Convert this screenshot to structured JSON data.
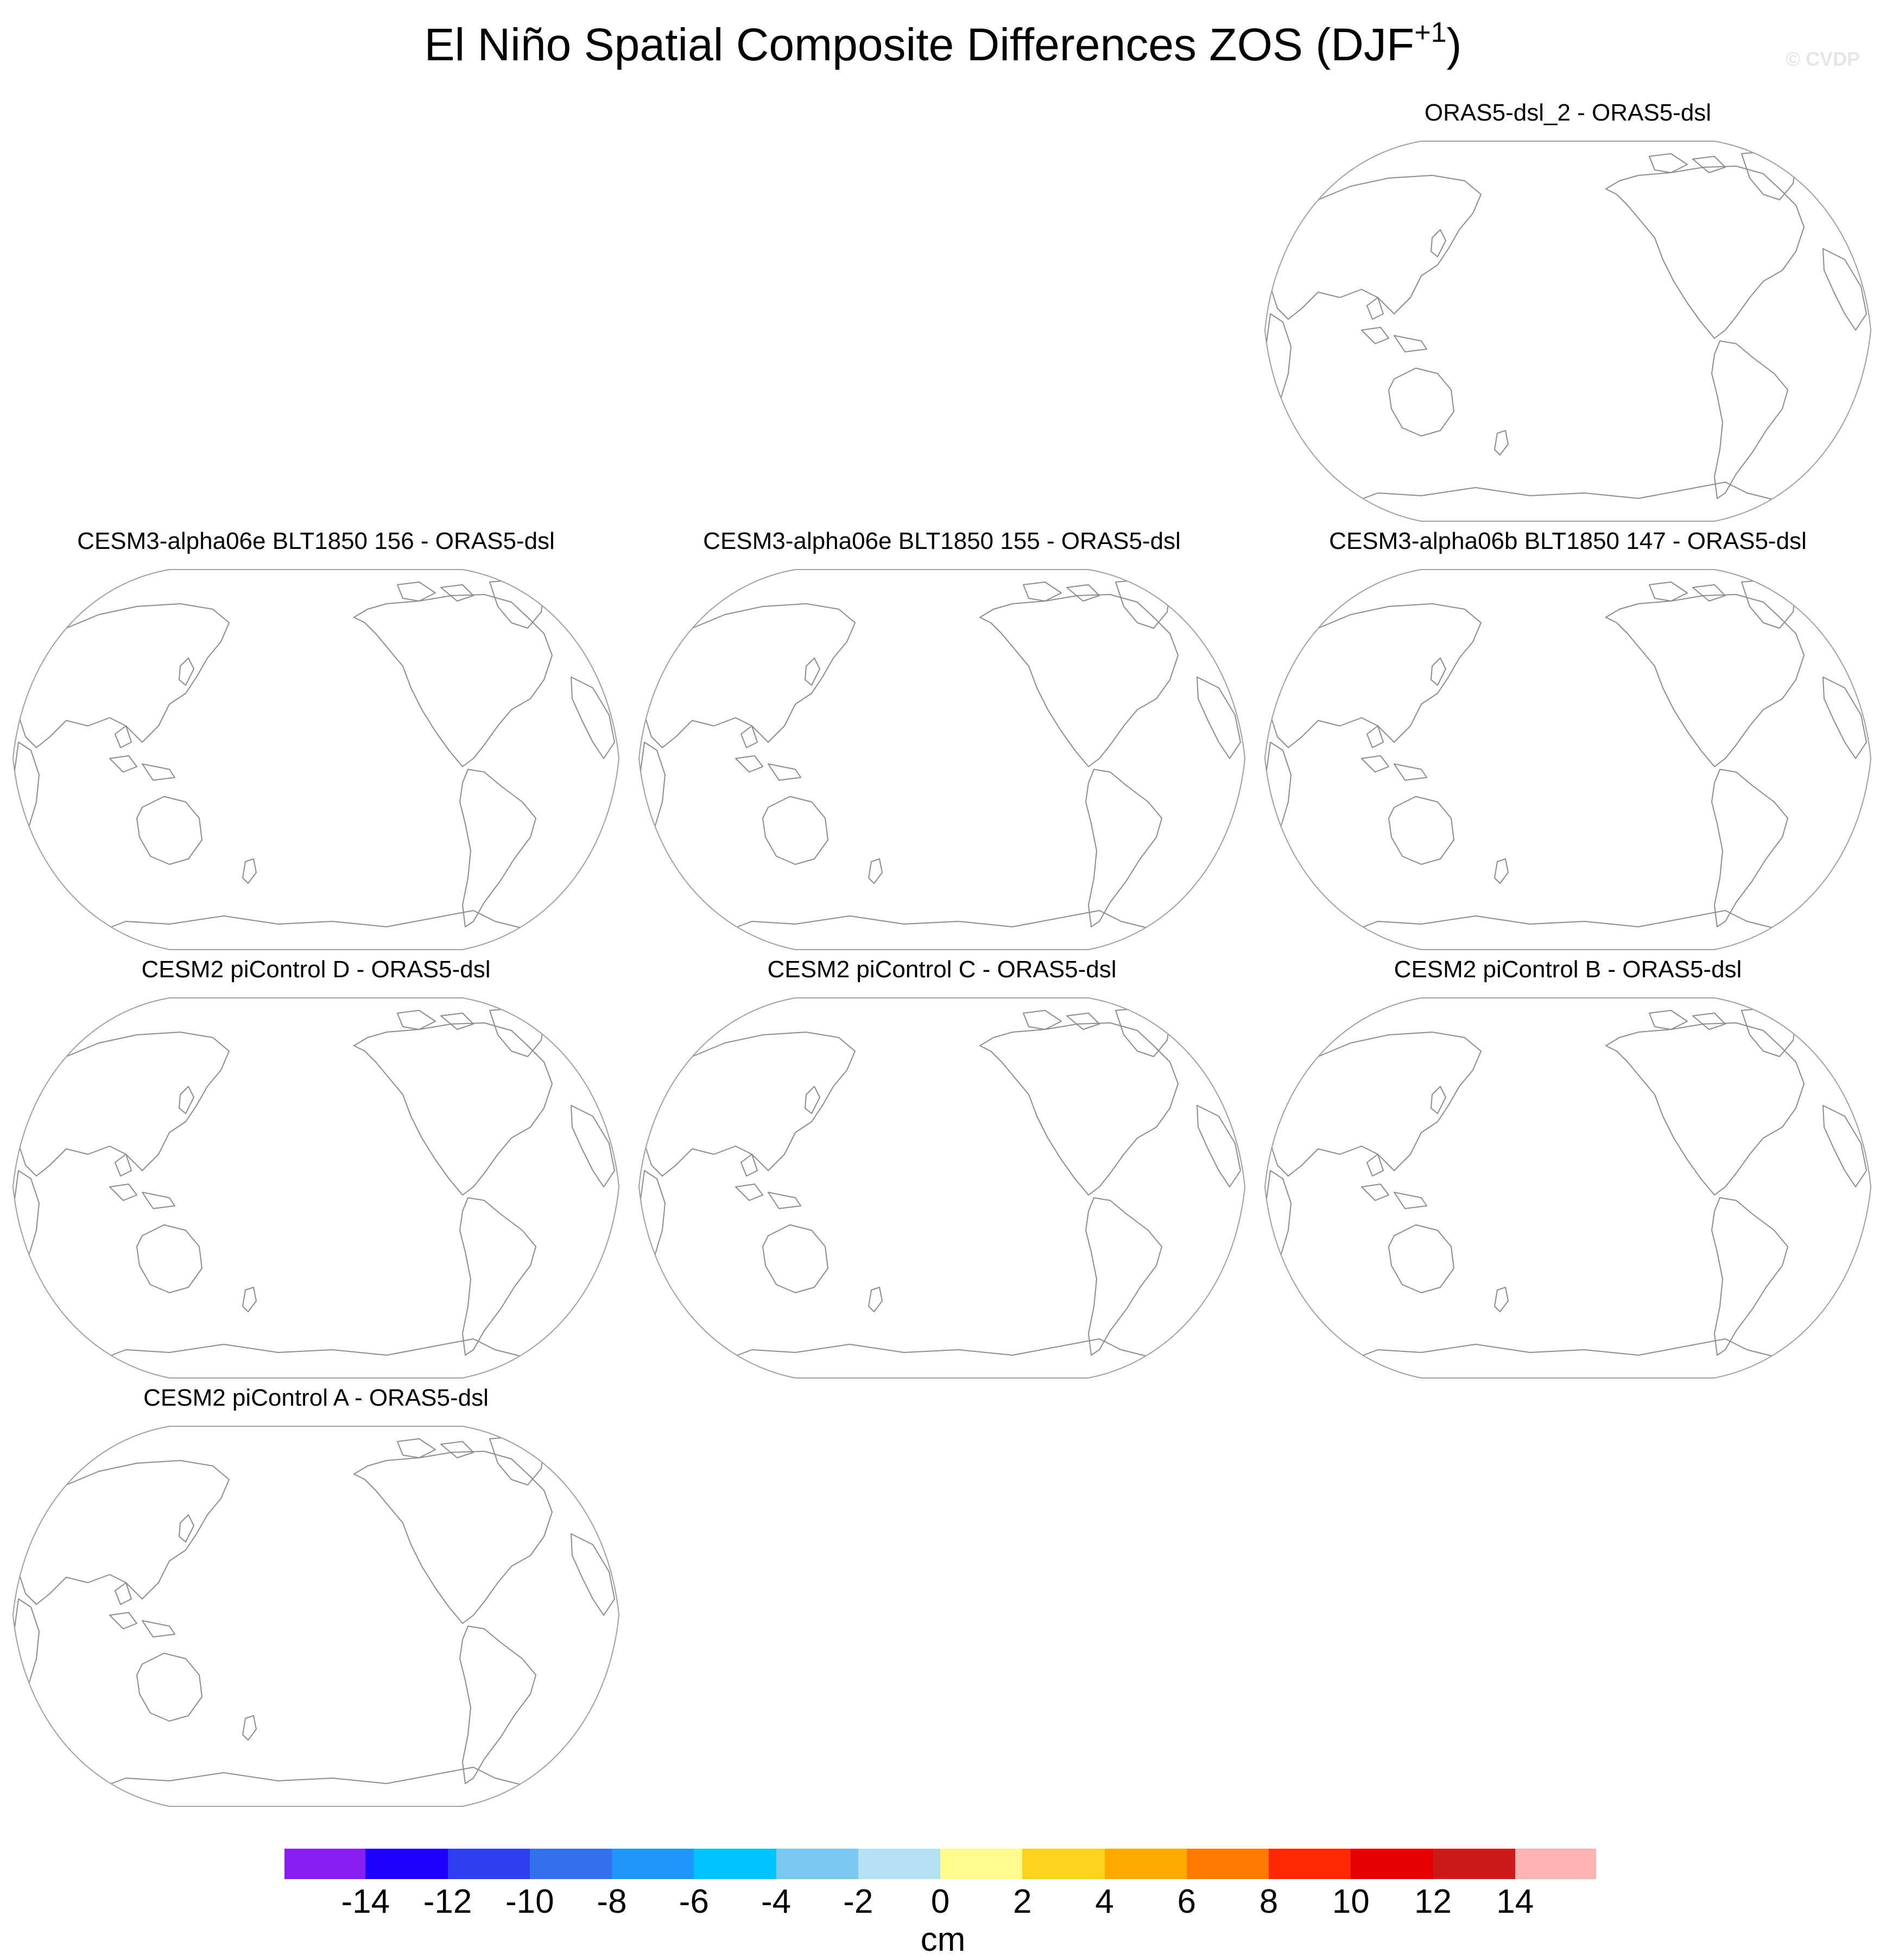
{
  "title": {
    "main": "El Niño Spatial Composite Differences ZOS (DJF",
    "superscript": "+1",
    "close": ")"
  },
  "watermark": "© CVDP",
  "panels": [
    {
      "title": "ORAS5-dsl_2 - ORAS5-dsl"
    },
    {
      "title": "CESM3-alpha06e BLT1850 156 - ORAS5-dsl"
    },
    {
      "title": "CESM3-alpha06e BLT1850 155 - ORAS5-dsl"
    },
    {
      "title": "CESM3-alpha06b BLT1850 147 - ORAS5-dsl"
    },
    {
      "title": "CESM2 piControl D - ORAS5-dsl"
    },
    {
      "title": "CESM2 piControl C - ORAS5-dsl"
    },
    {
      "title": "CESM2 piControl B - ORAS5-dsl"
    },
    {
      "title": "CESM2 piControl A - ORAS5-dsl"
    }
  ],
  "colorbar": {
    "unit": "cm",
    "colors": [
      "#8a1ef0",
      "#1e00ff",
      "#2e3ff0",
      "#3270ee",
      "#1e96fa",
      "#00c4ff",
      "#78c8f0",
      "#b4e0f2",
      "#fffa8c",
      "#ffd21e",
      "#ffaa00",
      "#ff7800",
      "#ff2800",
      "#e60000",
      "#cc1a1a",
      "#ffb2b2"
    ],
    "tick_labels": [
      "-14",
      "-12",
      "-10",
      "-8",
      "-6",
      "-4",
      "-2",
      "0",
      "2",
      "4",
      "6",
      "8",
      "10",
      "12",
      "14"
    ]
  },
  "style": {
    "coastline_color": "#8c8c8c",
    "map_border_color": "#a0a0a0",
    "map_fill": "#ffffff"
  }
}
